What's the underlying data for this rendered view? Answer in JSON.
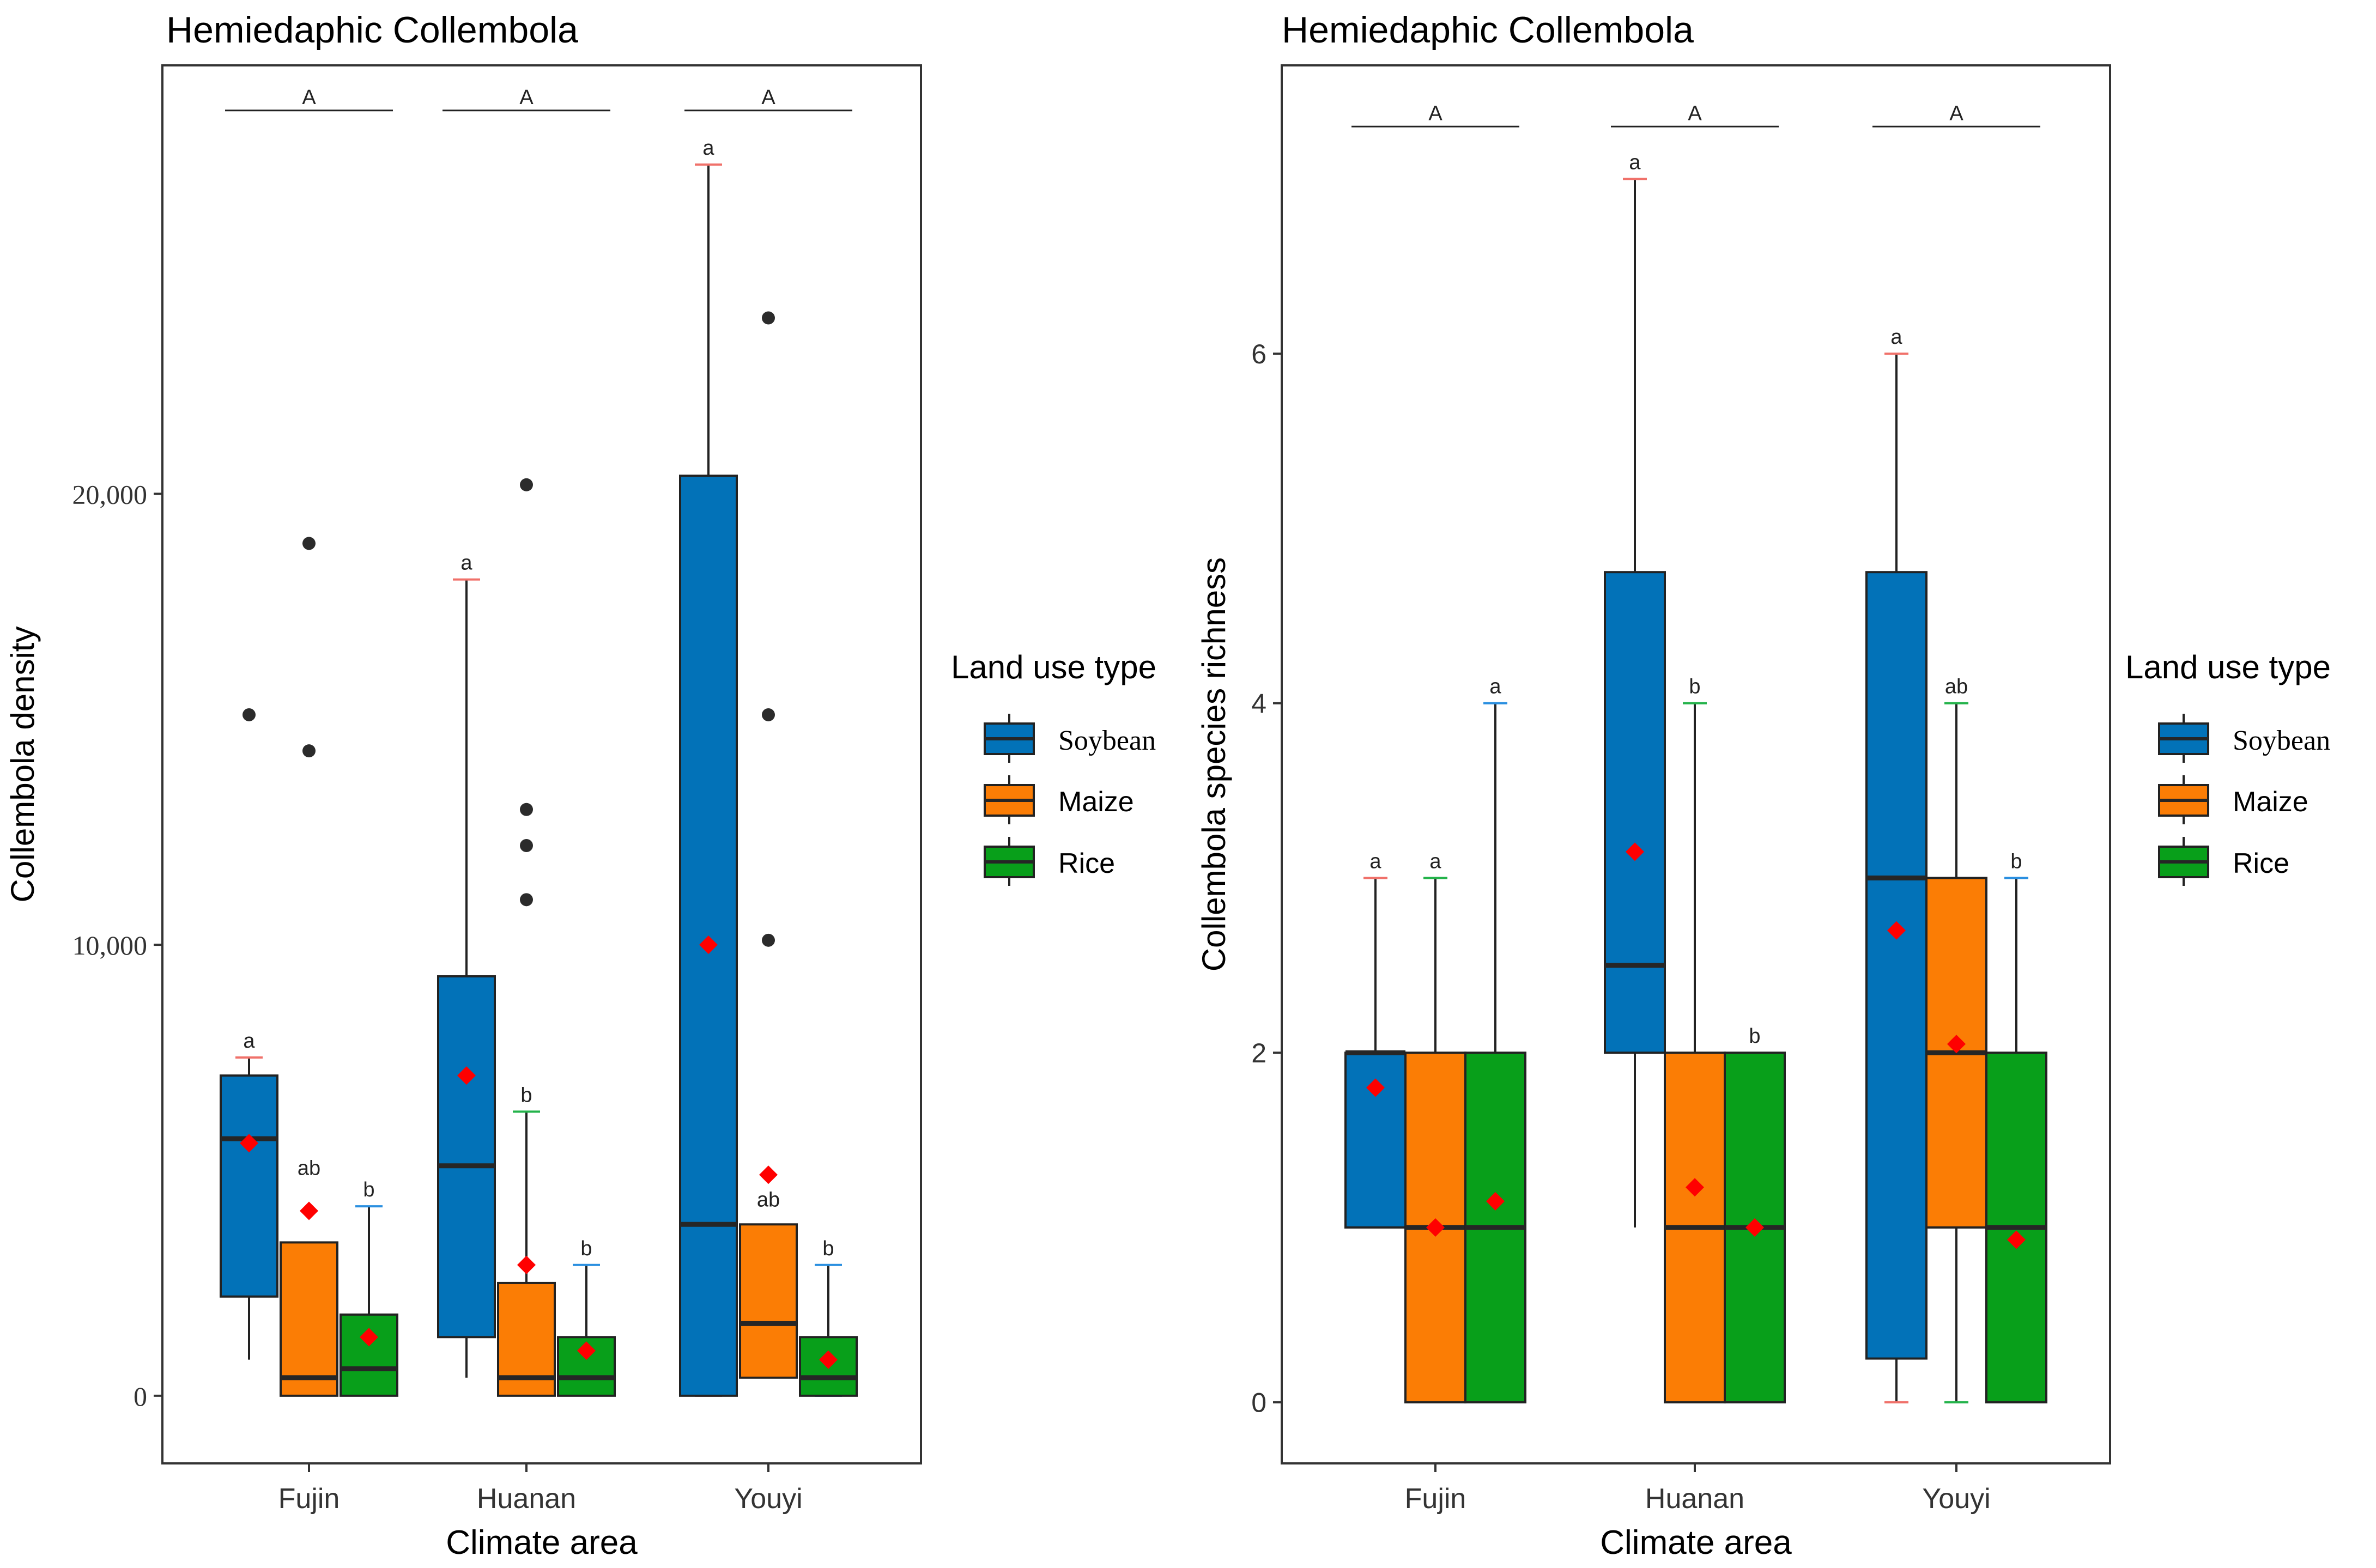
{
  "colors": {
    "Soybean": "#0272b8",
    "Maize": "#fb7d05",
    "Rice": "#089f1a",
    "median": "#262626",
    "mean": "#ff0000",
    "outlier": "#2b2b2b",
    "cap_Soybean": "#f0716a",
    "cap_Maize": "#24b34b",
    "cap_Rice": "#2a8fe0"
  },
  "legend": {
    "title": "Land use type",
    "entries": [
      "Soybean",
      "Maize",
      "Rice"
    ]
  },
  "chart_data": [
    {
      "type": "boxplot",
      "title": "Hemiedaphic Collembola",
      "xlabel": "Climate area",
      "ylabel": "Collembola density",
      "categories": [
        "Fujin",
        "Huanan",
        "Youyi"
      ],
      "ylim": [
        -1500,
        29500
      ],
      "yticks": [
        0,
        10000,
        20000
      ],
      "ytick_labels": [
        "0",
        "10,000",
        "20,000"
      ],
      "group_letters": [
        "A",
        "A",
        "A"
      ],
      "group_letter_y": 28500,
      "series": [
        {
          "name": "Soybean",
          "boxes": [
            {
              "whislo": 800,
              "q1": 2200,
              "med": 5700,
              "q3": 7100,
              "whishi": 7500,
              "mean": 5600,
              "fliers": [
                15100
              ],
              "letter": "a",
              "cap": "top"
            },
            {
              "whislo": 400,
              "q1": 1300,
              "med": 5100,
              "q3": 9300,
              "whishi": 18100,
              "mean": 7100,
              "fliers": [],
              "letter": "a",
              "cap": "top"
            },
            {
              "whislo": 0,
              "q1": 0,
              "med": 3800,
              "q3": 20400,
              "whishi": 27300,
              "mean": 10000,
              "fliers": [],
              "letter": "a",
              "cap": "both"
            }
          ]
        },
        {
          "name": "Maize",
          "boxes": [
            {
              "whislo": 0,
              "q1": 0,
              "med": 400,
              "q3": 3400,
              "whishi": 3400,
              "mean": 4100,
              "fliers": [
                14300,
                18900
              ],
              "letter": "ab",
              "letter_y": 4850,
              "cap": "none"
            },
            {
              "whislo": 0,
              "q1": 0,
              "med": 400,
              "q3": 2500,
              "whishi": 6300,
              "mean": 2900,
              "fliers": [
                11000,
                12200,
                13000,
                20200
              ],
              "letter": "b",
              "cap": "top"
            },
            {
              "whislo": 400,
              "q1": 400,
              "med": 1600,
              "q3": 3800,
              "whishi": 3800,
              "mean": 4900,
              "fliers": [
                10100,
                15100,
                23900
              ],
              "letter": "ab",
              "letter_y": 4150,
              "cap": "none"
            }
          ]
        },
        {
          "name": "Rice",
          "boxes": [
            {
              "whislo": 0,
              "q1": 0,
              "med": 600,
              "q3": 1800,
              "whishi": 4200,
              "mean": 1300,
              "fliers": [],
              "letter": "b",
              "cap": "top"
            },
            {
              "whislo": 0,
              "q1": 0,
              "med": 400,
              "q3": 1300,
              "whishi": 2900,
              "mean": 1000,
              "fliers": [],
              "letter": "b",
              "cap": "top"
            },
            {
              "whislo": 0,
              "q1": 0,
              "med": 400,
              "q3": 1300,
              "whishi": 2900,
              "mean": 800,
              "fliers": [],
              "letter": "b",
              "cap": "both"
            }
          ]
        }
      ]
    },
    {
      "type": "boxplot",
      "title": "Hemiedaphic Collembola",
      "xlabel": "Climate area",
      "ylabel": "Collembola species richness",
      "categories": [
        "Fujin",
        "Huanan",
        "Youyi"
      ],
      "ylim": [
        -0.35,
        7.65
      ],
      "yticks": [
        0,
        2,
        4,
        6
      ],
      "ytick_labels": [
        "0",
        "2",
        "4",
        "6"
      ],
      "group_letters": [
        "A",
        "A",
        "A"
      ],
      "group_letter_y": 7.3,
      "series": [
        {
          "name": "Soybean",
          "boxes": [
            {
              "whislo": 1,
              "q1": 1,
              "med": 2,
              "q3": 2,
              "whishi": 3,
              "mean": 1.8,
              "fliers": [],
              "letter": "a",
              "cap": "top"
            },
            {
              "whislo": 1,
              "q1": 2,
              "med": 2.5,
              "q3": 4.75,
              "whishi": 7,
              "mean": 3.15,
              "fliers": [],
              "letter": "a",
              "cap": "top"
            },
            {
              "whislo": 0,
              "q1": 0.25,
              "med": 3,
              "q3": 4.75,
              "whishi": 6,
              "mean": 2.7,
              "fliers": [],
              "letter": "a",
              "cap": "both"
            }
          ]
        },
        {
          "name": "Maize",
          "boxes": [
            {
              "whislo": 0,
              "q1": 0,
              "med": 1,
              "q3": 2,
              "whishi": 3,
              "mean": 1.0,
              "fliers": [],
              "letter": "a",
              "cap": "top"
            },
            {
              "whislo": 0,
              "q1": 0,
              "med": 1,
              "q3": 2,
              "whishi": 4,
              "mean": 1.23,
              "fliers": [],
              "letter": "b",
              "cap": "top"
            },
            {
              "whislo": 0,
              "q1": 1,
              "med": 2,
              "q3": 3,
              "whishi": 4,
              "mean": 2.05,
              "fliers": [],
              "letter": "ab",
              "cap": "both"
            }
          ]
        },
        {
          "name": "Rice",
          "boxes": [
            {
              "whislo": 0,
              "q1": 0,
              "med": 1,
              "q3": 2,
              "whishi": 4,
              "mean": 1.15,
              "fliers": [],
              "letter": "a",
              "cap": "top"
            },
            {
              "whislo": 0,
              "q1": 0,
              "med": 1,
              "q3": 2,
              "whishi": 2,
              "mean": 1.0,
              "fliers": [],
              "letter": "b",
              "cap": "none"
            },
            {
              "whislo": 0,
              "q1": 0,
              "med": 1,
              "q3": 2,
              "whishi": 3,
              "mean": 0.93,
              "fliers": [],
              "letter": "b",
              "cap": "top"
            }
          ]
        }
      ]
    }
  ]
}
